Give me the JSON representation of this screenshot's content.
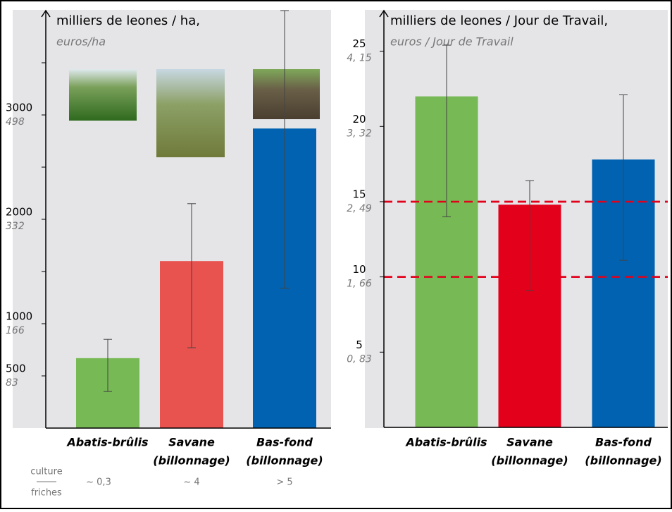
{
  "chart_data": [
    {
      "type": "bar",
      "title": "milliers de leones / ha,",
      "subtitle": "euros/ha",
      "categories": [
        [
          "Abatis-brûlis"
        ],
        [
          "Savane",
          "(billonnage)"
        ],
        [
          "Bas-fond",
          "(billonnage)"
        ]
      ],
      "values": [
        670,
        1600,
        2870
      ],
      "errors": [
        [
          350,
          850
        ],
        [
          770,
          2150
        ],
        [
          1340,
          4000
        ]
      ],
      "colors": [
        "#77b955",
        "#e8524f",
        "#0062b0"
      ],
      "ylim": [
        0,
        4000
      ],
      "yticks": [
        500,
        1000,
        2000,
        3000
      ],
      "yticks_secondary": [
        "83",
        "166",
        "332",
        "498"
      ],
      "yminor_ticks": [
        1500,
        2500,
        3500
      ]
    },
    {
      "type": "bar",
      "title": "milliers de leones / Jour de Travail,",
      "subtitle": "euros / Jour de Travail",
      "categories": [
        [
          "Abatis-brûlis"
        ],
        [
          "Savane",
          "(billonnage)"
        ],
        [
          "Bas-fond",
          "(billonnage)"
        ]
      ],
      "values": [
        22,
        14.8,
        17.8
      ],
      "errors": [
        [
          14,
          25.4
        ],
        [
          9.1,
          16.4
        ],
        [
          11.1,
          22.1
        ]
      ],
      "colors": [
        "#77b955",
        "#e3001b",
        "#0062b0"
      ],
      "ylim": [
        0,
        27.7
      ],
      "yticks": [
        5,
        10,
        15,
        20,
        25
      ],
      "yticks_secondary": [
        "0, 83",
        "1, 66",
        "2, 49",
        "3, 32",
        "4, 15"
      ],
      "reference_lines": [
        15,
        10
      ],
      "reference_color": "#e3001b"
    }
  ],
  "footer": {
    "numerator": "culture",
    "denominator": "friches",
    "values": [
      "~ 0,3",
      "~ 4",
      "> 5"
    ]
  }
}
